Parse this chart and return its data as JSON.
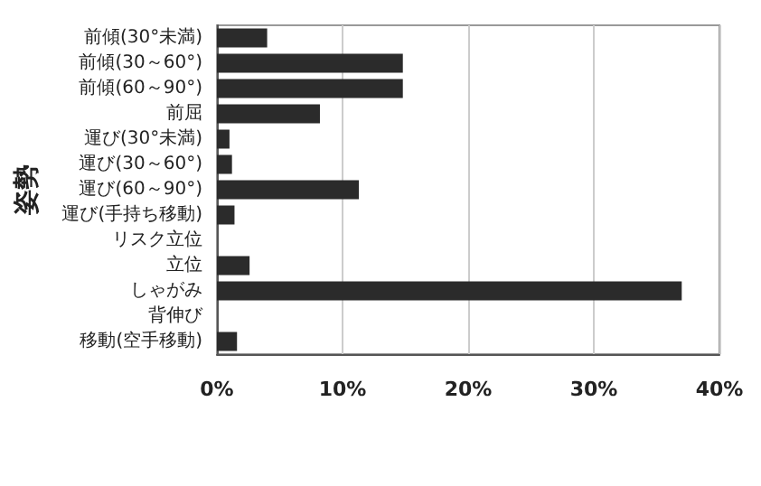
{
  "chart_data": {
    "type": "bar",
    "orientation": "horizontal",
    "ylabel": "姿勢",
    "categories": [
      "前傾(30°未満)",
      "前傾(30～60°)",
      "前傾(60～90°)",
      "前屈",
      "運び(30°未満)",
      "運び(30～60°)",
      "運び(60～90°)",
      "運び(手持ち移動)",
      "リスク立位",
      "立位",
      "しゃがみ",
      "背伸び",
      "移動(空手移動)"
    ],
    "values": [
      4.0,
      14.8,
      14.8,
      8.2,
      1.0,
      1.2,
      11.3,
      1.4,
      0,
      2.6,
      37.0,
      0,
      1.6
    ],
    "color": "#2b2b2b",
    "xlim": [
      0,
      40
    ],
    "xticks": [
      {
        "value": 0,
        "label": "0%"
      },
      {
        "value": 10,
        "label": "10%"
      },
      {
        "value": 20,
        "label": "20%"
      },
      {
        "value": 30,
        "label": "30%"
      },
      {
        "value": 40,
        "label": "40%"
      }
    ],
    "grid": "x"
  }
}
